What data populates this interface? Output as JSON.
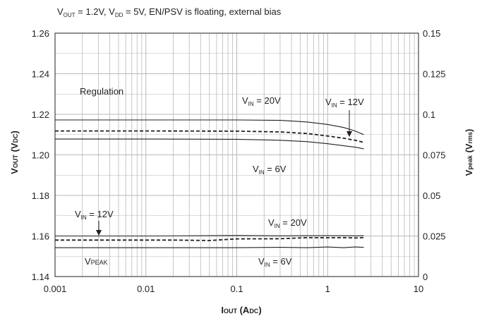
{
  "chart_data": {
    "type": "line",
    "title": {
      "v1": "V",
      "s1": "OUT",
      "m1": " = 1.2V,  V",
      "s2": "DD",
      "m2": " =  5V, EN/PSV is floating, external bias"
    },
    "xlabel": {
      "main": "I",
      "sub": "OUT",
      "rest": " (A",
      "sub2": "DC",
      "end": ")"
    },
    "ylabel_left": {
      "main": "V",
      "sub": "OUT",
      "rest": " (V",
      "sub2": "DC",
      "end": ")"
    },
    "ylabel_right": {
      "main": "V",
      "sub": "peak",
      "rest": " (V",
      "sub2": "rms",
      "end": ")"
    },
    "x_scale": "log",
    "xlim": [
      0.001,
      10
    ],
    "x_ticks": [
      "0.001",
      "0.01",
      "0.1",
      "1",
      "10"
    ],
    "ylim_left": [
      1.14,
      1.26
    ],
    "y_ticks_left": [
      "1.14",
      "1.16",
      "1.18",
      "1.20",
      "1.22",
      "1.24",
      "1.26"
    ],
    "ylim_right": [
      0,
      0.15
    ],
    "y_ticks_right": [
      "0",
      "0.025",
      "0.05",
      "0.075",
      "0.1",
      "0.125",
      "0.15"
    ],
    "grid": true,
    "series": [
      {
        "name": "VIN = 20V",
        "axis": "left",
        "style": "solid",
        "x": [
          0.001,
          0.01,
          0.1,
          0.3,
          0.6,
          1.0,
          1.5,
          2.0,
          2.5
        ],
        "y": [
          1.2172,
          1.2172,
          1.2172,
          1.217,
          1.2162,
          1.215,
          1.2135,
          1.2118,
          1.21
        ]
      },
      {
        "name": "VIN = 12V",
        "axis": "left",
        "style": "dashed",
        "x": [
          0.001,
          0.01,
          0.1,
          0.3,
          0.6,
          1.0,
          1.5,
          2.0,
          2.5
        ],
        "y": [
          1.2118,
          1.2118,
          1.2117,
          1.2113,
          1.2105,
          1.2093,
          1.2082,
          1.2072,
          1.2062
        ]
      },
      {
        "name": "VIN = 6V",
        "axis": "left",
        "style": "solid",
        "x": [
          0.001,
          0.01,
          0.1,
          0.3,
          0.6,
          1.0,
          1.5,
          2.0,
          2.5
        ],
        "y": [
          1.2078,
          1.2078,
          1.2077,
          1.2072,
          1.2065,
          1.2055,
          1.2045,
          1.2038,
          1.203
        ]
      },
      {
        "name": "VPEAK VIN = 20V",
        "axis": "right",
        "style": "solid",
        "x": [
          0.001,
          0.01,
          0.1,
          0.3,
          0.6,
          1.0,
          1.5,
          2.0,
          2.5
        ],
        "y": [
          0.025,
          0.025,
          0.0253,
          0.0251,
          0.0252,
          0.0252,
          0.0252,
          0.0251,
          0.0252
        ]
      },
      {
        "name": "VPEAK VIN = 12V",
        "axis": "right",
        "style": "dashed",
        "x": [
          0.001,
          0.01,
          0.02,
          0.05,
          0.1,
          0.3,
          0.6,
          1.0,
          1.5,
          2.0,
          2.5
        ],
        "y": [
          0.0225,
          0.0225,
          0.0225,
          0.0222,
          0.0232,
          0.0233,
          0.024,
          0.0239,
          0.024,
          0.0238,
          0.024
        ]
      },
      {
        "name": "VPEAK VIN = 6V",
        "axis": "right",
        "style": "solid",
        "x": [
          0.001,
          0.01,
          0.1,
          0.3,
          0.6,
          1.0,
          1.5,
          2.0,
          2.5
        ],
        "y": [
          0.0178,
          0.0178,
          0.0178,
          0.018,
          0.0178,
          0.0182,
          0.0178,
          0.0182,
          0.018
        ]
      }
    ],
    "annotations": {
      "regulation": "Regulation",
      "vin20_top": {
        "v": "V",
        "sub": "IN",
        "rest": " = 20V"
      },
      "vin12_top": {
        "v": "V",
        "sub": "IN",
        "rest": " = 12V"
      },
      "vin6_top": {
        "v": "V",
        "sub": "IN",
        "rest": " = 6V"
      },
      "vin12_bot": {
        "v": "V",
        "sub": "IN",
        "rest": " = 12V"
      },
      "vin20_bot": {
        "v": "V",
        "sub": "IN",
        "rest": " = 20V"
      },
      "vin6_bot": {
        "v": "V",
        "sub": "IN",
        "rest": " = 6V"
      },
      "vpeak": {
        "v": "V",
        "sub": "PEAK"
      }
    }
  }
}
